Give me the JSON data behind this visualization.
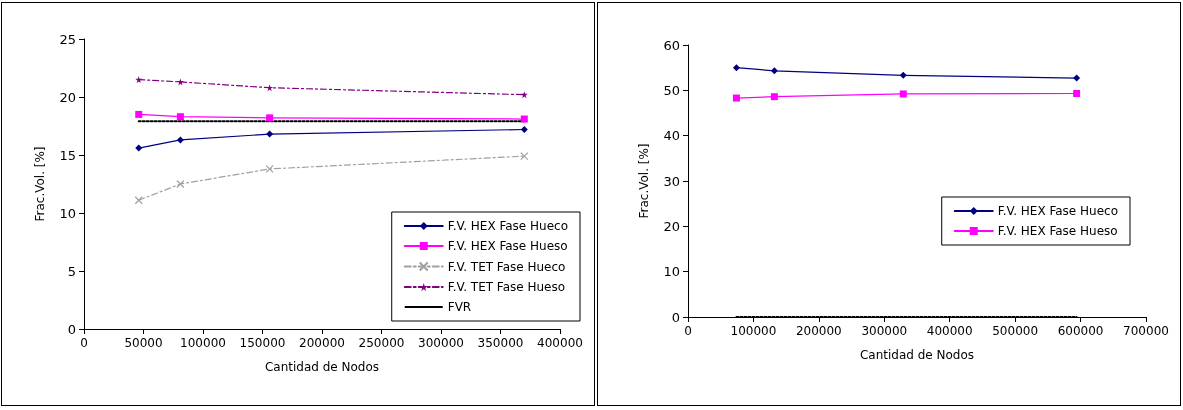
{
  "chart_data": [
    {
      "type": "line",
      "xlabel": "Cantidad de Nodos",
      "ylabel": "Frac.Vol. [%]",
      "xlim": [
        0,
        400000
      ],
      "xticks": [
        0,
        50000,
        100000,
        150000,
        200000,
        250000,
        300000,
        350000,
        400000
      ],
      "ylim": [
        0,
        25
      ],
      "yticks": [
        0,
        5,
        10,
        15,
        20,
        25
      ],
      "grid": false,
      "legend": "bottom right",
      "x": [
        46000,
        81000,
        156000,
        370000
      ],
      "series": [
        {
          "name": "F.V. HEX Fase Hueco",
          "color": "#000080",
          "marker": "diamond",
          "line_style": "solid",
          "values": [
            15.6,
            16.3,
            16.8,
            17.2
          ]
        },
        {
          "name": "F.V. HEX Fase Hueso",
          "color": "#ff00ff",
          "marker": "square",
          "line_style": "solid",
          "values": [
            18.5,
            18.3,
            18.2,
            18.1
          ]
        },
        {
          "name": "F.V. TET Fase Hueco",
          "color": "#a0a0a0",
          "marker": "cross",
          "line_style": "dashed",
          "values": [
            11.1,
            12.5,
            13.8,
            14.9
          ]
        },
        {
          "name": "F.V. TET Fase Hueso",
          "color": "#800080",
          "marker": "star",
          "line_style": "dashed",
          "values": [
            21.5,
            21.3,
            20.8,
            20.2
          ]
        },
        {
          "name": "FVR",
          "color": "#000000",
          "marker": "none",
          "line_style": "dotted",
          "values": [
            17.9,
            17.9,
            17.9,
            17.9
          ]
        }
      ]
    },
    {
      "type": "line",
      "xlabel": "Cantidad de Nodos",
      "ylabel": "Frac.Vol. [%]",
      "xlim": [
        0,
        700000
      ],
      "xticks": [
        0,
        100000,
        200000,
        300000,
        400000,
        500000,
        600000,
        700000
      ],
      "ylim": [
        0,
        60
      ],
      "yticks": [
        0,
        10,
        20,
        30,
        40,
        50,
        60
      ],
      "grid": false,
      "legend": "right",
      "x": [
        74000,
        132000,
        329000,
        594000
      ],
      "series": [
        {
          "name": "F.V. HEX Fase Hueco",
          "color": "#000080",
          "marker": "diamond",
          "line_style": "solid",
          "values": [
            55.0,
            54.3,
            53.3,
            52.7
          ]
        },
        {
          "name": "F.V. HEX Fase Hueso",
          "color": "#ff00ff",
          "marker": "square",
          "line_style": "solid",
          "values": [
            48.3,
            48.6,
            49.2,
            49.3
          ]
        },
        {
          "color": "#000000",
          "marker": "none",
          "line_style": "dotted",
          "values": [
            0,
            0,
            0,
            0
          ]
        }
      ]
    }
  ]
}
